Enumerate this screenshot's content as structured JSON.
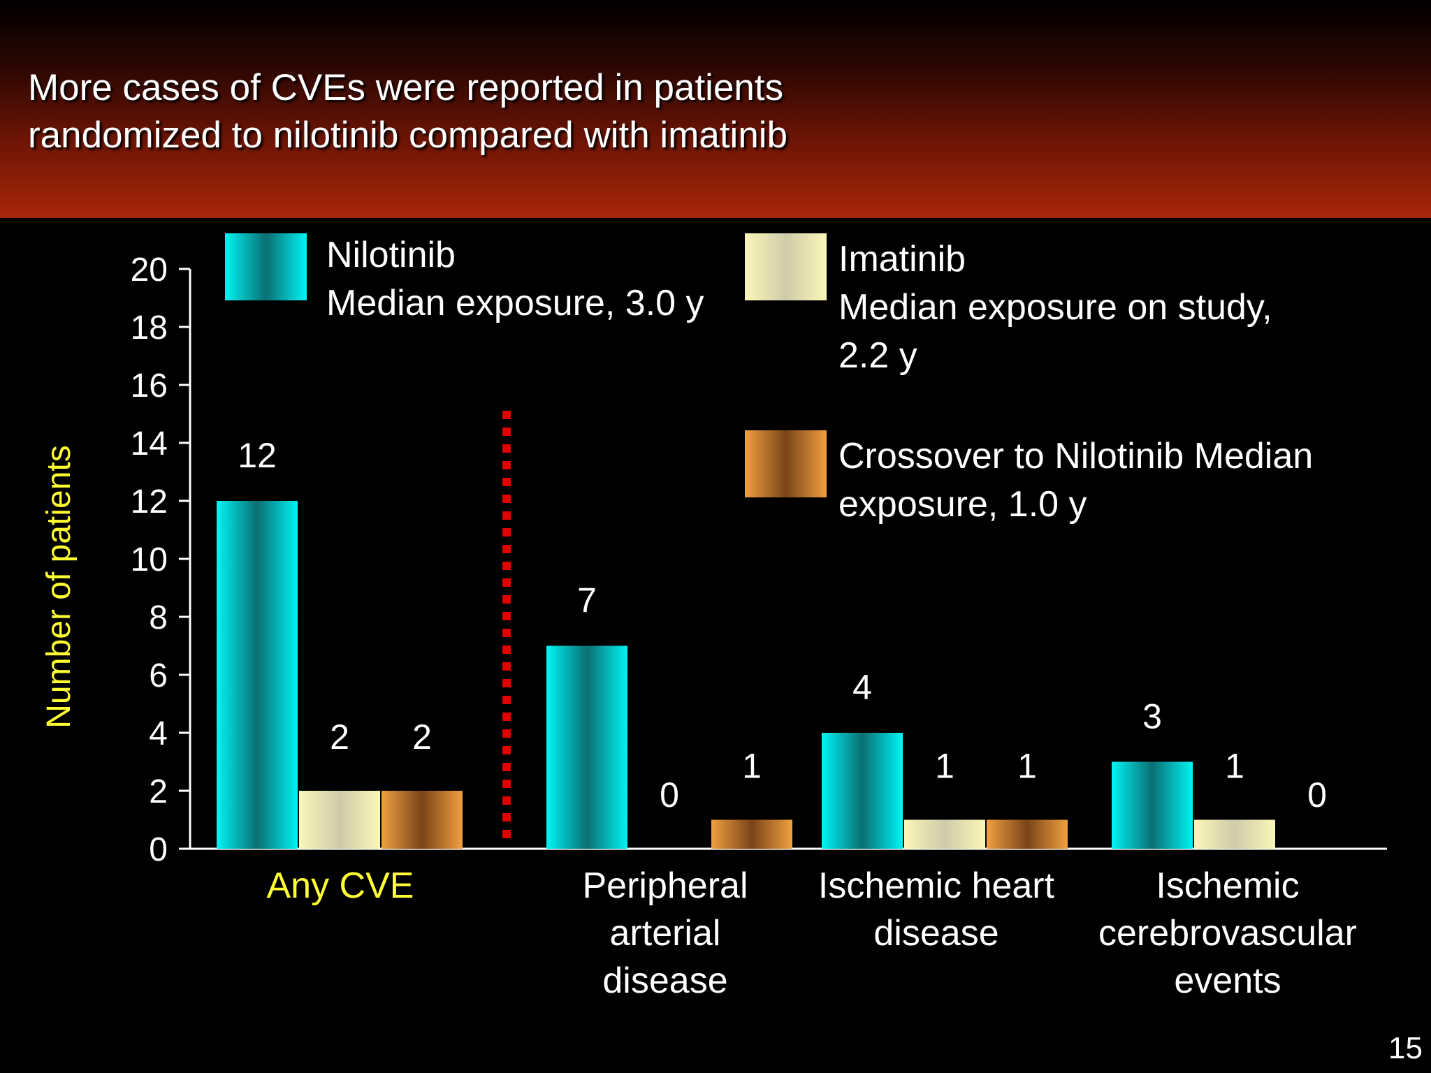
{
  "slide": {
    "title_lines": [
      "More cases of CVEs were reported in patients",
      "randomized to nilotinib compared with imatinib"
    ],
    "page_number": "15"
  },
  "colors": {
    "nilotinib": "#00e6e6",
    "imatinib": "#f3eeb0",
    "crossover": "#e0943c",
    "divider": "#e00000",
    "ylabel": "#ffff33",
    "highlight_category": "#ffff33"
  },
  "chart_data": {
    "type": "bar",
    "ylabel": "Number of patients",
    "ylim": [
      0,
      20
    ],
    "yticks": [
      0,
      2,
      4,
      6,
      8,
      10,
      12,
      14,
      16,
      18,
      20
    ],
    "grid": false,
    "legend_position": "top",
    "categories": [
      "Any CVE",
      "Peripheral arterial disease",
      "Ischemic heart disease",
      "Ischemic cerebrovascular events"
    ],
    "category_label_lines": [
      [
        "Any CVE"
      ],
      [
        "Peripheral",
        "arterial",
        "disease"
      ],
      [
        "Ischemic heart",
        "disease"
      ],
      [
        "Ischemic",
        "cerebrovascular",
        "events"
      ]
    ],
    "series": [
      {
        "name": "Nilotinib",
        "legend_lines": [
          "Nilotinib",
          "Median exposure, 3.0 y"
        ],
        "values": [
          12,
          7,
          4,
          3
        ]
      },
      {
        "name": "Imatinib",
        "legend_lines": [
          "Imatinib",
          "Median exposure on study,",
          "2.2 y"
        ],
        "values": [
          2,
          0,
          1,
          1
        ]
      },
      {
        "name": "Crossover to Nilotinib",
        "legend_lines": [
          "Crossover to Nilotinib Median",
          "exposure, 1.0 y"
        ],
        "values": [
          2,
          1,
          1,
          0
        ]
      }
    ]
  }
}
